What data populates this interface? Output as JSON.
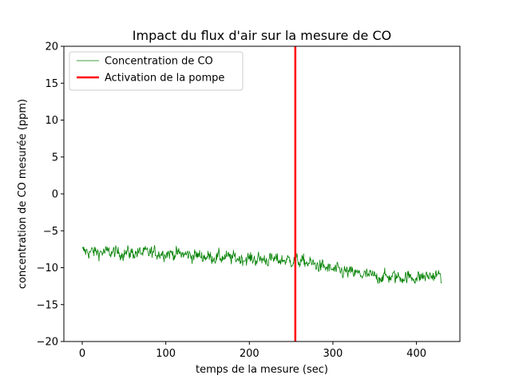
{
  "chart_data": {
    "type": "line",
    "title": "Impact du flux d'air sur la mesure de CO",
    "xlabel": "temps de la mesure (sec)",
    "ylabel": "concentration de CO mesurée (ppm)",
    "xlim": [
      -22,
      452
    ],
    "ylim": [
      -20,
      20
    ],
    "xticks": [
      0,
      100,
      200,
      300,
      400
    ],
    "yticks": [
      -20,
      -15,
      -10,
      -5,
      0,
      5,
      10,
      15,
      20
    ],
    "grid": false,
    "legend_position": "top-left",
    "series": [
      {
        "name": "Concentration de CO",
        "color": "#008000",
        "x_range": [
          0,
          430
        ],
        "points_per_second": 2,
        "trend": [
          {
            "x": 0,
            "y": -7.8
          },
          {
            "x": 50,
            "y": -8.0
          },
          {
            "x": 100,
            "y": -8.0
          },
          {
            "x": 150,
            "y": -8.5
          },
          {
            "x": 200,
            "y": -8.8
          },
          {
            "x": 250,
            "y": -9.0
          },
          {
            "x": 270,
            "y": -9.3
          },
          {
            "x": 300,
            "y": -10.3
          },
          {
            "x": 350,
            "y": -11.2
          },
          {
            "x": 400,
            "y": -11.3
          },
          {
            "x": 430,
            "y": -11.0
          }
        ],
        "noise_amplitude": 1.5
      }
    ],
    "vlines": [
      {
        "name": "Activation de la pompe",
        "x": 255,
        "color": "#ff0000"
      }
    ]
  }
}
